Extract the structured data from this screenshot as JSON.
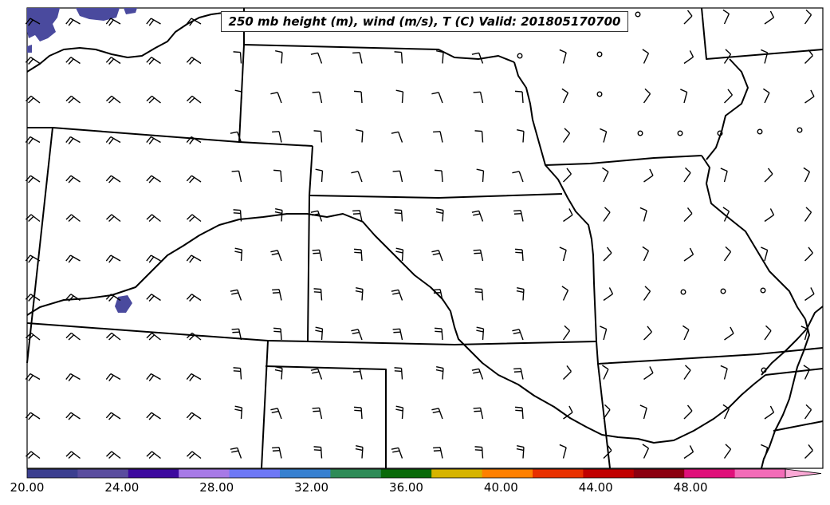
{
  "title": "250 mb height (m), wind (m/s), T (C) Valid: 201805170700",
  "colorbar": {
    "tick_labels": [
      "20.00",
      "24.00",
      "28.00",
      "32.00",
      "36.00",
      "40.00",
      "44.00",
      "48.00"
    ],
    "range": [
      20,
      52
    ],
    "extend": "max",
    "colors": [
      "#3b3f8f",
      "#5a4d9e",
      "#3d0a9e",
      "#a77ae6",
      "#6e78f5",
      "#3780d0",
      "#2e8b57",
      "#0a6a0a",
      "#d6b400",
      "#ff8000",
      "#e83000",
      "#c00000",
      "#8b0010",
      "#e0107a",
      "#f36cb8",
      "#fba9d6"
    ]
  },
  "temperature_shading_color": "#4a4a9e",
  "barb_color": "#000000",
  "boundary_color": "#000000"
}
